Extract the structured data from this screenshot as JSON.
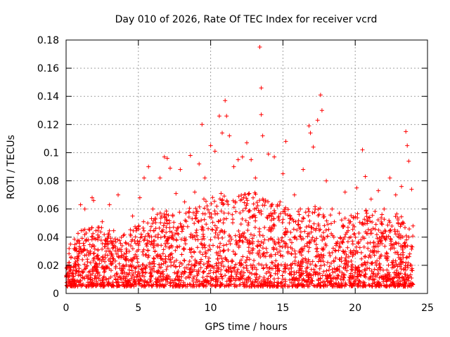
{
  "chart_data": {
    "type": "scatter",
    "title": "Day 010 of 2026, Rate Of TEC Index for receiver vcrd",
    "xlabel": "GPS time / hours",
    "ylabel": "ROTI / TECUs",
    "xlim": [
      0,
      25
    ],
    "ylim": [
      0,
      0.18
    ],
    "x_ticks": [
      "0",
      "5",
      "10",
      "15",
      "20",
      "25"
    ],
    "y_ticks": [
      "0",
      "0.02",
      "0.04",
      "0.06",
      "0.08",
      "0.1",
      "0.12",
      "0.14",
      "0.16",
      "0.18"
    ],
    "grid": true,
    "marker": "+",
    "color": "#ff0000",
    "series": [
      {
        "points": [
          [
            0.3,
            0.035
          ],
          [
            0.6,
            0.025
          ],
          [
            1.0,
            0.063
          ],
          [
            1.3,
            0.06
          ],
          [
            1.8,
            0.068
          ],
          [
            1.9,
            0.066
          ],
          [
            2.5,
            0.051
          ],
          [
            3.0,
            0.063
          ],
          [
            3.6,
            0.07
          ],
          [
            4.2,
            0.03
          ],
          [
            4.6,
            0.055
          ],
          [
            5.1,
            0.068
          ],
          [
            5.4,
            0.082
          ],
          [
            5.7,
            0.09
          ],
          [
            6.0,
            0.06
          ],
          [
            6.5,
            0.082
          ],
          [
            6.8,
            0.097
          ],
          [
            7.0,
            0.096
          ],
          [
            7.2,
            0.089
          ],
          [
            7.6,
            0.071
          ],
          [
            7.9,
            0.088
          ],
          [
            8.2,
            0.065
          ],
          [
            8.6,
            0.098
          ],
          [
            8.9,
            0.072
          ],
          [
            9.2,
            0.092
          ],
          [
            9.4,
            0.12
          ],
          [
            9.6,
            0.082
          ],
          [
            10.0,
            0.105
          ],
          [
            10.3,
            0.101
          ],
          [
            10.6,
            0.126
          ],
          [
            10.8,
            0.114
          ],
          [
            11.0,
            0.137
          ],
          [
            11.1,
            0.126
          ],
          [
            11.3,
            0.112
          ],
          [
            11.6,
            0.09
          ],
          [
            11.9,
            0.095
          ],
          [
            12.2,
            0.097
          ],
          [
            12.5,
            0.107
          ],
          [
            12.8,
            0.095
          ],
          [
            13.1,
            0.082
          ],
          [
            13.4,
            0.175
          ],
          [
            13.5,
            0.146
          ],
          [
            13.5,
            0.127
          ],
          [
            13.6,
            0.112
          ],
          [
            14.0,
            0.099
          ],
          [
            14.4,
            0.097
          ],
          [
            14.6,
            0.062
          ],
          [
            14.8,
            0.065
          ],
          [
            15.0,
            0.085
          ],
          [
            15.2,
            0.108
          ],
          [
            15.5,
            0.055
          ],
          [
            15.8,
            0.07
          ],
          [
            16.2,
            0.06
          ],
          [
            16.4,
            0.088
          ],
          [
            16.8,
            0.119
          ],
          [
            16.9,
            0.114
          ],
          [
            17.1,
            0.104
          ],
          [
            17.4,
            0.123
          ],
          [
            17.6,
            0.141
          ],
          [
            17.7,
            0.13
          ],
          [
            18.0,
            0.08
          ],
          [
            18.4,
            0.06
          ],
          [
            18.9,
            0.057
          ],
          [
            19.3,
            0.072
          ],
          [
            19.6,
            0.05
          ],
          [
            20.1,
            0.075
          ],
          [
            20.5,
            0.102
          ],
          [
            20.7,
            0.083
          ],
          [
            21.1,
            0.067
          ],
          [
            21.6,
            0.073
          ],
          [
            22.0,
            0.06
          ],
          [
            22.4,
            0.082
          ],
          [
            22.8,
            0.07
          ],
          [
            23.2,
            0.076
          ],
          [
            23.5,
            0.115
          ],
          [
            23.6,
            0.105
          ],
          [
            23.7,
            0.094
          ],
          [
            23.9,
            0.074
          ],
          [
            24.0,
            0.048
          ]
        ]
      }
    ],
    "dense_band": {
      "description": "baseline",
      "x_range": [
        0,
        24
      ],
      "y_floor": 0.005,
      "envelope": [
        [
          0,
          0.032
        ],
        [
          1,
          0.045
        ],
        [
          2,
          0.05
        ],
        [
          3,
          0.046
        ],
        [
          4,
          0.042
        ],
        [
          5,
          0.05
        ],
        [
          6,
          0.055
        ],
        [
          7,
          0.06
        ],
        [
          8,
          0.06
        ],
        [
          9,
          0.064
        ],
        [
          10,
          0.07
        ],
        [
          11,
          0.072
        ],
        [
          12,
          0.07
        ],
        [
          13,
          0.072
        ],
        [
          14,
          0.068
        ],
        [
          15,
          0.062
        ],
        [
          16,
          0.058
        ],
        [
          17,
          0.064
        ],
        [
          18,
          0.058
        ],
        [
          19,
          0.052
        ],
        [
          20,
          0.058
        ],
        [
          21,
          0.06
        ],
        [
          22,
          0.056
        ],
        [
          23,
          0.058
        ],
        [
          24,
          0.045
        ]
      ]
    }
  }
}
